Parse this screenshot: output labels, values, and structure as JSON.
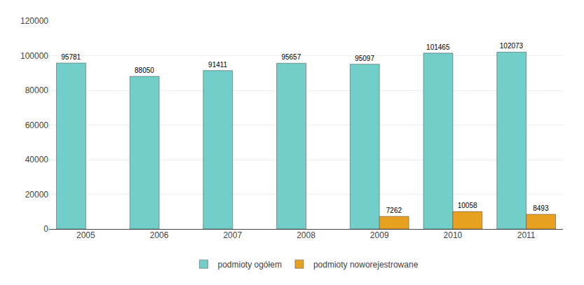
{
  "chart_data": {
    "type": "bar",
    "categories": [
      "2005",
      "2006",
      "2007",
      "2008",
      "2009",
      "2010",
      "2011"
    ],
    "series": [
      {
        "name": "podmioty ogółem",
        "color": "#72CEC8",
        "values": [
          95781,
          88050,
          91411,
          95657,
          95097,
          101465,
          102073
        ]
      },
      {
        "name": "podmioty noworejestrowane",
        "color": "#E8A020",
        "values": [
          null,
          null,
          null,
          null,
          7262,
          10058,
          8493
        ]
      }
    ],
    "ylim": [
      0,
      120000
    ],
    "yticks": [
      0,
      20000,
      40000,
      60000,
      80000,
      100000,
      120000
    ],
    "grid": true,
    "legend": "bottom",
    "data_labels": true
  }
}
